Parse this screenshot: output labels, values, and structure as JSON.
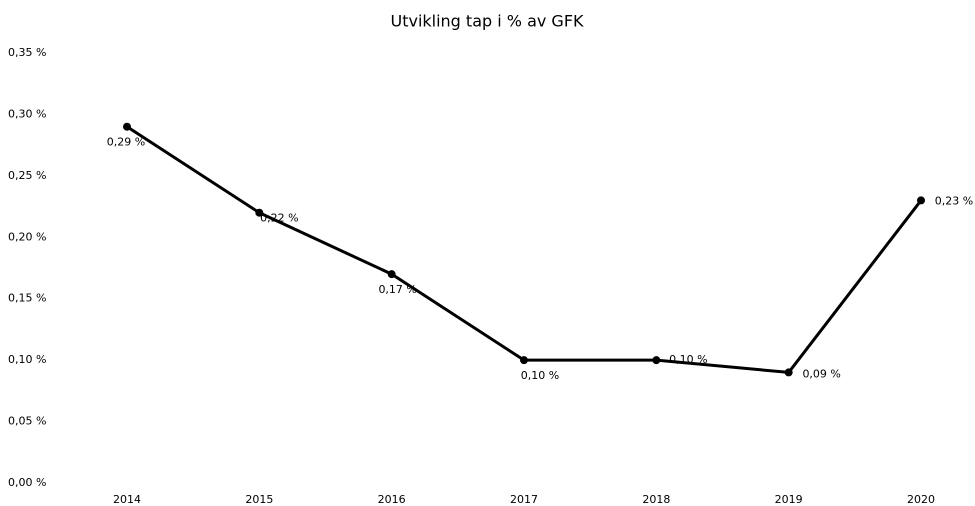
{
  "chart_data": {
    "type": "line",
    "title": "Utvikling tap i % av GFK",
    "categories": [
      "2014",
      "2015",
      "2016",
      "2017",
      "2018",
      "2019",
      "2020"
    ],
    "series": [
      {
        "name": null,
        "color": "#000000",
        "values": [
          0.29,
          0.22,
          0.17,
          0.1,
          0.1,
          0.09,
          0.23
        ],
        "value_labels": [
          "0,29 %",
          "0,22 %",
          "0,17 %",
          "0,10 %",
          "0,10 %",
          "0,09 %",
          "0,23 %"
        ]
      }
    ],
    "ylim": [
      0,
      0.35
    ],
    "yticks": [
      {
        "value": 0,
        "label": "0,00 %"
      },
      {
        "value": 0.05,
        "label": "0,05 %"
      },
      {
        "value": 0.1,
        "label": "0,10 %"
      },
      {
        "value": 0.15,
        "label": "0,15 %"
      },
      {
        "value": 0.2,
        "label": "0,20 %"
      },
      {
        "value": 0.25,
        "label": "0,25 %"
      },
      {
        "value": 0.3,
        "label": "0,30 %"
      },
      {
        "value": 0.35,
        "label": "0,35 %"
      }
    ],
    "grid": false
  }
}
